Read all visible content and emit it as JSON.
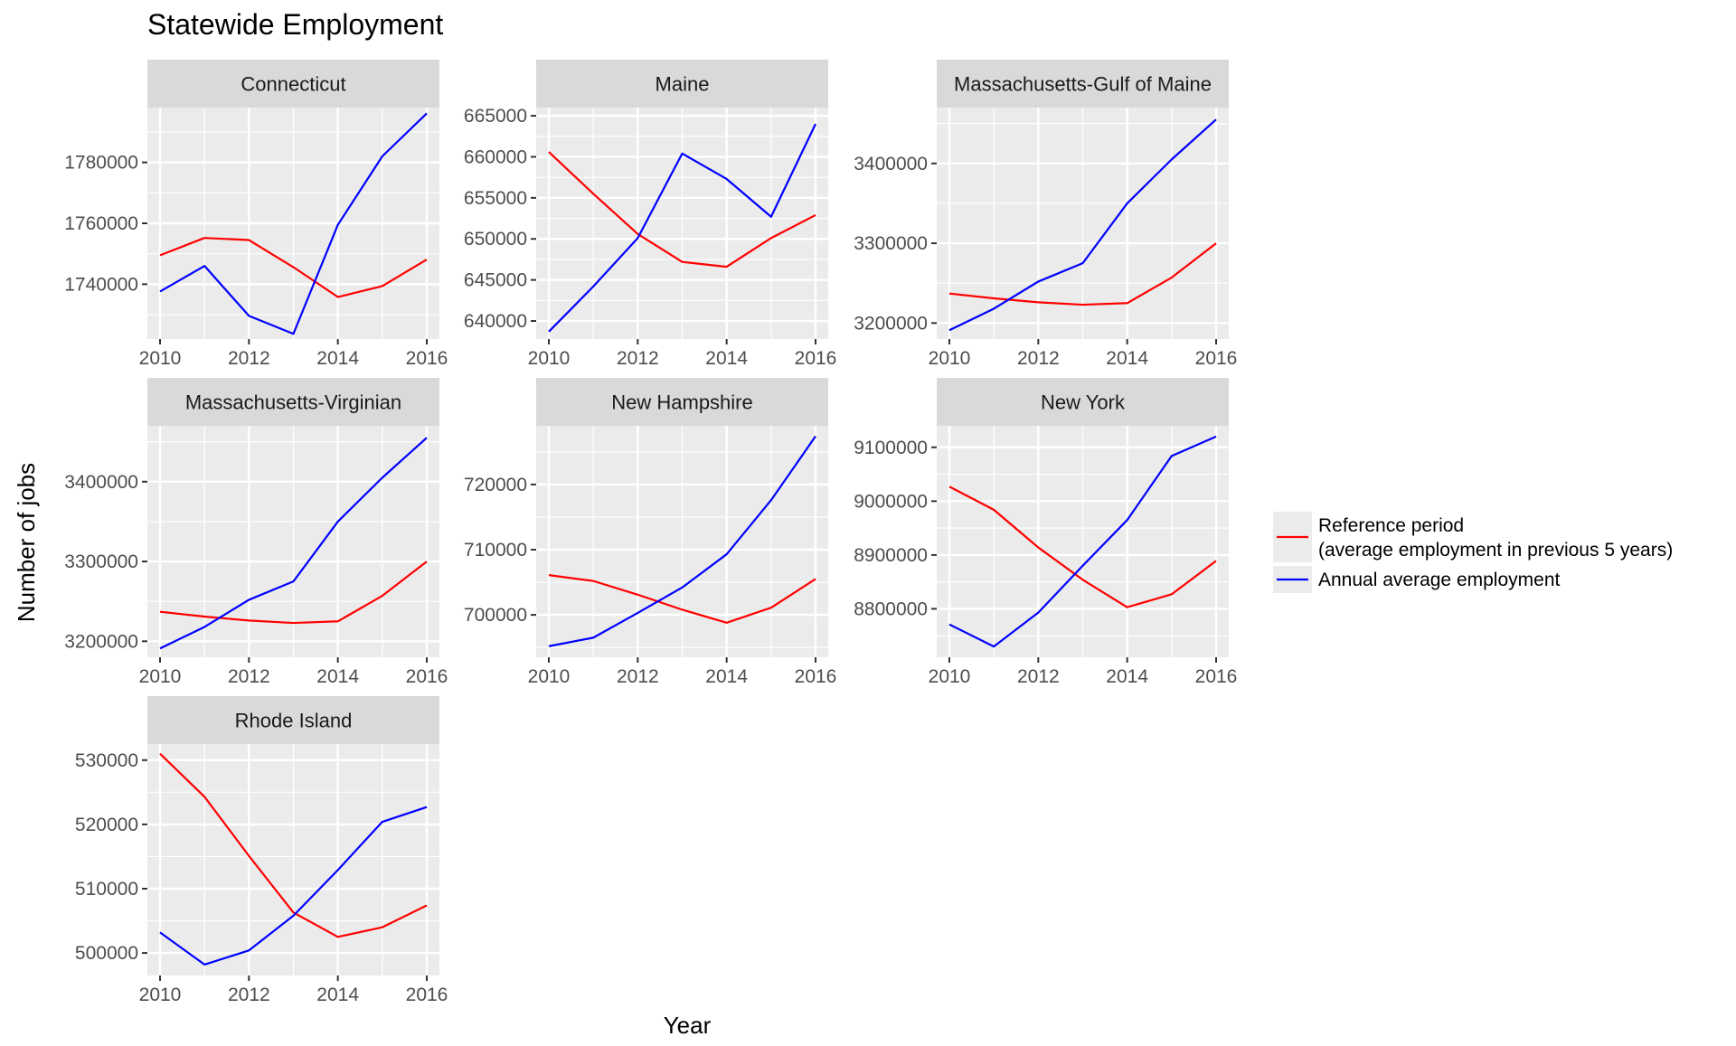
{
  "chart_data": {
    "type": "line",
    "title": "Statewide Employment",
    "xlabel": "Year",
    "ylabel": "Number of jobs",
    "x": [
      2010,
      2011,
      2012,
      2013,
      2014,
      2015,
      2016
    ],
    "x_ticks": [
      2010,
      2012,
      2014,
      2016
    ],
    "legend": {
      "placement": "right",
      "entries": [
        {
          "key": "reference",
          "label_lines": [
            "Reference period",
            "(average employment in previous 5 years)"
          ],
          "color": "#ff0000"
        },
        {
          "key": "annual",
          "label_lines": [
            "Annual average employment"
          ],
          "color": "#0000ff"
        }
      ]
    },
    "colors": {
      "reference": "#ff0000",
      "annual": "#0000ff",
      "panel_bg": "#ebebeb",
      "strip_bg": "#d9d9d9",
      "grid": "#ffffff"
    },
    "panels": [
      {
        "name": "Connecticut",
        "ylim": [
          1722000,
          1798000
        ],
        "y_ticks": [
          1740000,
          1760000,
          1780000
        ],
        "series": [
          {
            "name": "Reference period",
            "key": "reference",
            "values": [
              1749500,
              1755200,
              1754500,
              1745600,
              1735800,
              1739400,
              1748100
            ]
          },
          {
            "name": "Annual average employment",
            "key": "annual",
            "values": [
              1737600,
              1746000,
              1729600,
              1723700,
              1759500,
              1782000,
              1796100
            ]
          }
        ]
      },
      {
        "name": "Maine",
        "ylim": [
          637800,
          666000
        ],
        "y_ticks": [
          640000,
          645000,
          650000,
          655000,
          660000,
          665000
        ],
        "series": [
          {
            "name": "Reference period",
            "key": "reference",
            "values": [
              660600,
              655500,
              650600,
              647200,
              646600,
              650100,
              652900
            ]
          },
          {
            "name": "Annual average employment",
            "key": "annual",
            "values": [
              638700,
              644200,
              650100,
              660400,
              657300,
              652700,
              664000
            ]
          }
        ]
      },
      {
        "name": "Massachusetts-Gulf of Maine",
        "ylim": [
          3180000,
          3470000
        ],
        "y_ticks": [
          3200000,
          3300000,
          3400000
        ],
        "series": [
          {
            "name": "Reference period",
            "key": "reference",
            "values": [
              3237000,
              3231000,
              3226000,
              3223000,
              3225000,
              3257000,
              3300000
            ]
          },
          {
            "name": "Annual average employment",
            "key": "annual",
            "values": [
              3191000,
              3218000,
              3252000,
              3275000,
              3350000,
              3405000,
              3455000
            ]
          }
        ]
      },
      {
        "name": "Massachusetts-Virginian",
        "ylim": [
          3180000,
          3470000
        ],
        "y_ticks": [
          3200000,
          3300000,
          3400000
        ],
        "series": [
          {
            "name": "Reference period",
            "key": "reference",
            "values": [
              3237000,
              3231000,
              3226000,
              3223000,
              3225000,
              3257000,
              3300000
            ]
          },
          {
            "name": "Annual average employment",
            "key": "annual",
            "values": [
              3191000,
              3218000,
              3252000,
              3275000,
              3350000,
              3405000,
              3455000
            ]
          }
        ]
      },
      {
        "name": "New Hampshire",
        "ylim": [
          693500,
          729000
        ],
        "y_ticks": [
          700000,
          710000,
          720000
        ],
        "series": [
          {
            "name": "Reference period",
            "key": "reference",
            "values": [
              706100,
              705200,
              703100,
              700800,
              698800,
              701100,
              705500
            ]
          },
          {
            "name": "Annual average employment",
            "key": "annual",
            "values": [
              695200,
              696500,
              700300,
              704200,
              709300,
              717600,
              727400
            ]
          }
        ]
      },
      {
        "name": "New York",
        "ylim": [
          8710000,
          9140000
        ],
        "y_ticks": [
          8800000,
          8900000,
          9000000,
          9100000
        ],
        "series": [
          {
            "name": "Reference period",
            "key": "reference",
            "values": [
              9027000,
              8984000,
              8914000,
              8854000,
              8803000,
              8827000,
              8889000
            ]
          },
          {
            "name": "Annual average employment",
            "key": "annual",
            "values": [
              8771000,
              8730000,
              8793000,
              8880000,
              8965000,
              9084000,
              9120000
            ]
          }
        ]
      },
      {
        "name": "Rhode Island",
        "ylim": [
          496500,
          532500
        ],
        "y_ticks": [
          500000,
          510000,
          520000,
          530000
        ],
        "series": [
          {
            "name": "Reference period",
            "key": "reference",
            "values": [
              531000,
              524300,
              515100,
              506300,
              502500,
              504000,
              507400
            ]
          },
          {
            "name": "Annual average employment",
            "key": "annual",
            "values": [
              503200,
              498200,
              500400,
              505800,
              512900,
              520400,
              522700
            ]
          }
        ]
      }
    ]
  }
}
